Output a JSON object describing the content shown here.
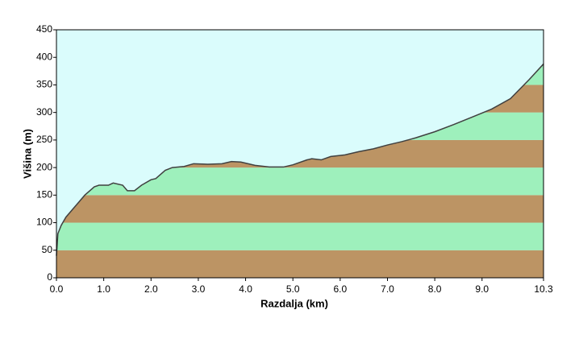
{
  "chart_data": {
    "type": "area",
    "x_label": "Razdalja  (km)",
    "y_label": "Višina (m)",
    "x": [
      0,
      0.03,
      0.1,
      0.2,
      0.4,
      0.6,
      0.8,
      0.9,
      1.1,
      1.2,
      1.4,
      1.5,
      1.65,
      1.8,
      2.0,
      2.1,
      2.3,
      2.45,
      2.7,
      2.9,
      3.2,
      3.5,
      3.7,
      3.9,
      4.2,
      4.5,
      4.8,
      5.0,
      5.3,
      5.4,
      5.6,
      5.8,
      6.1,
      6.4,
      6.7,
      7.0,
      7.3,
      7.6,
      8.0,
      8.4,
      8.8,
      9.2,
      9.6,
      10.0,
      10.3
    ],
    "values": [
      40,
      80,
      95,
      110,
      130,
      150,
      165,
      168,
      168,
      172,
      168,
      158,
      158,
      168,
      178,
      180,
      195,
      200,
      202,
      207,
      206,
      207,
      211,
      210,
      204,
      201,
      201,
      205,
      214,
      216,
      214,
      220,
      223,
      229,
      234,
      241,
      247,
      254,
      265,
      278,
      292,
      306,
      325,
      360,
      388
    ],
    "color": "#404040",
    "background": "#dafcfc",
    "band_colors": [
      "#bc9464",
      "#9ef0bc"
    ],
    "xlim": [
      0,
      10.3
    ],
    "xticks": [
      {
        "value": 0,
        "label": "0.0"
      },
      {
        "value": 1,
        "label": "1.0"
      },
      {
        "value": 2,
        "label": "2.0"
      },
      {
        "value": 3,
        "label": "3.0"
      },
      {
        "value": 4,
        "label": "4.0"
      },
      {
        "value": 5,
        "label": "5.0"
      },
      {
        "value": 6,
        "label": "6.0"
      },
      {
        "value": 7,
        "label": "7.0"
      },
      {
        "value": 8,
        "label": "8.0"
      },
      {
        "value": 9,
        "label": "9.0"
      },
      10.3
    ],
    "ylim": [
      0,
      450
    ],
    "yticks": [
      0,
      50,
      100,
      150,
      200,
      250,
      300,
      350,
      400,
      450
    ]
  }
}
